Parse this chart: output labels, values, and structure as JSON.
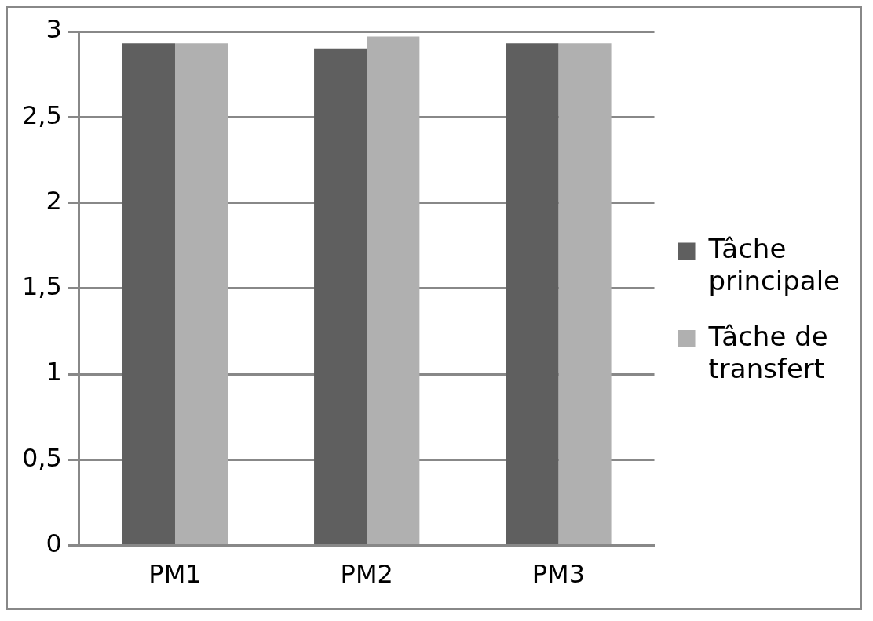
{
  "chart_data": {
    "type": "bar",
    "categories": [
      "PM1",
      "PM2",
      "PM3"
    ],
    "series": [
      {
        "name": "Tâche principale",
        "color": "#5f5f5f",
        "values": [
          2.93,
          2.9,
          2.93
        ]
      },
      {
        "name": "Tâche de transfert",
        "color": "#b0b0b0",
        "values": [
          2.93,
          2.97,
          2.93
        ]
      }
    ],
    "ylim": [
      0,
      3
    ],
    "yticks": [
      0,
      {
        "value": 0.5,
        "label": "0,5"
      },
      1,
      {
        "value": 1.5,
        "label": "1,5"
      },
      2,
      {
        "value": 2.5,
        "label": "2,5"
      },
      3
    ],
    "grid": "y",
    "legend": "right"
  }
}
